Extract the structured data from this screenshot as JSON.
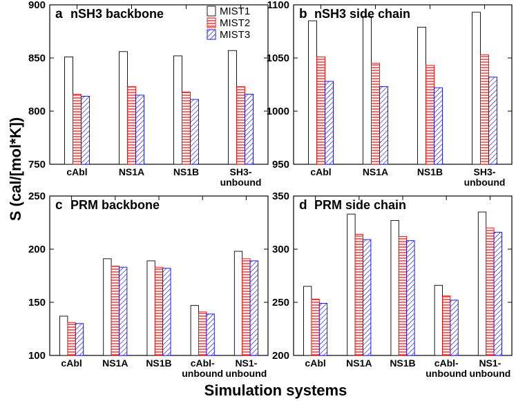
{
  "figure": {
    "ylabel": "S (cal/[mol*K])",
    "xlabel": "Simulation systems"
  },
  "legend": [
    {
      "name": "MIST1",
      "style": "open",
      "color": "#000000"
    },
    {
      "name": "MIST2",
      "style": "hlines",
      "color": "#ff0000"
    },
    {
      "name": "MIST3",
      "style": "diag",
      "color": "#0000ff"
    }
  ],
  "chart_data": [
    {
      "type": "bar",
      "panel": "a",
      "title": "nSH3 backbone",
      "categories": [
        [
          "cAbl"
        ],
        [
          "NS1A"
        ],
        [
          "NS1B"
        ],
        [
          "SH3-",
          "unbound"
        ]
      ],
      "series": [
        {
          "name": "MIST1",
          "values": [
            851,
            856,
            852,
            857
          ]
        },
        {
          "name": "MIST2",
          "values": [
            816,
            823,
            818,
            823
          ]
        },
        {
          "name": "MIST3",
          "values": [
            814,
            815,
            811,
            816
          ]
        }
      ],
      "ylim": [
        750,
        900
      ],
      "yticks": [
        750,
        800,
        850,
        900
      ]
    },
    {
      "type": "bar",
      "panel": "b",
      "title": "nSH3 side chain",
      "categories": [
        [
          "cAbl"
        ],
        [
          "NS1A"
        ],
        [
          "NS1B"
        ],
        [
          "SH3-",
          "unbound"
        ]
      ],
      "series": [
        {
          "name": "MIST1",
          "values": [
            1085,
            1089,
            1079,
            1093
          ]
        },
        {
          "name": "MIST2",
          "values": [
            1051,
            1045,
            1043,
            1053
          ]
        },
        {
          "name": "MIST3",
          "values": [
            1028,
            1023,
            1022,
            1032
          ]
        }
      ],
      "ylim": [
        950,
        1100
      ],
      "yticks": [
        950,
        1000,
        1050,
        1100
      ]
    },
    {
      "type": "bar",
      "panel": "c",
      "title": "PRM backbone",
      "categories": [
        [
          "cAbl"
        ],
        [
          "NS1A"
        ],
        [
          "NS1B"
        ],
        [
          "cAbl-",
          "unbound"
        ],
        [
          "NS1-",
          "unbound"
        ]
      ],
      "series": [
        {
          "name": "MIST1",
          "values": [
            137,
            191,
            189,
            147,
            198
          ]
        },
        {
          "name": "MIST2",
          "values": [
            131,
            184,
            183,
            141,
            191
          ]
        },
        {
          "name": "MIST3",
          "values": [
            130,
            183,
            182,
            139,
            189
          ]
        }
      ],
      "ylim": [
        100,
        250
      ],
      "yticks": [
        100,
        150,
        200,
        250
      ]
    },
    {
      "type": "bar",
      "panel": "d",
      "title": "PRM side chain",
      "categories": [
        [
          "cAbl"
        ],
        [
          "NS1A"
        ],
        [
          "NS1B"
        ],
        [
          "cAbl-",
          "unbound"
        ],
        [
          "NS1-",
          "unbound"
        ]
      ],
      "series": [
        {
          "name": "MIST1",
          "values": [
            265,
            333,
            327,
            266,
            335
          ]
        },
        {
          "name": "MIST2",
          "values": [
            253,
            314,
            312,
            256,
            320
          ]
        },
        {
          "name": "MIST3",
          "values": [
            249,
            309,
            308,
            252,
            316
          ]
        }
      ],
      "ylim": [
        200,
        350
      ],
      "yticks": [
        200,
        250,
        300,
        350
      ]
    }
  ]
}
